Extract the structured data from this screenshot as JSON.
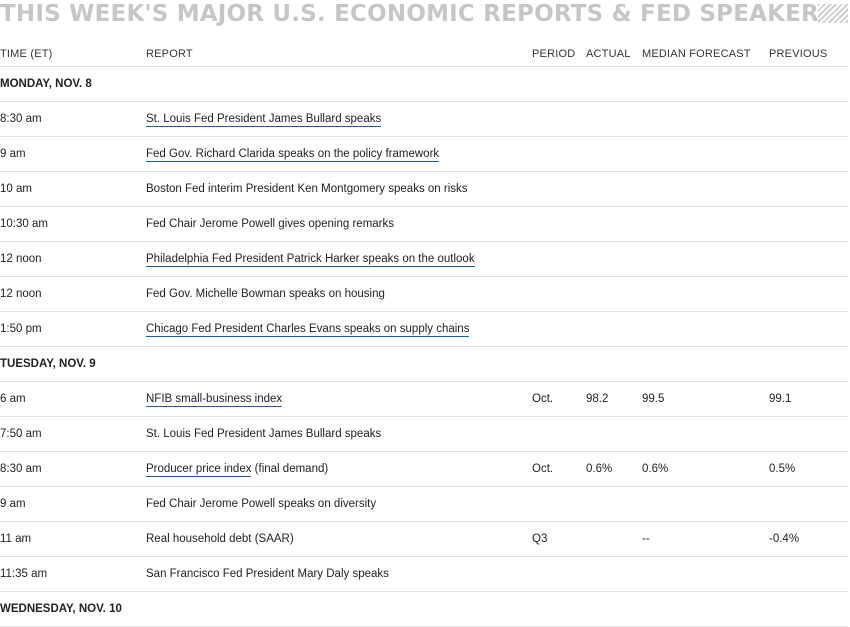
{
  "title": "THIS WEEK'S MAJOR U.S. ECONOMIC REPORTS & FED SPEAKERS",
  "headers": {
    "time": "TIME (ET)",
    "report": "REPORT",
    "period": "PERIOD",
    "actual": "ACTUAL",
    "median": "MEDIAN FORECAST",
    "previous": "PREVIOUS"
  },
  "rows": [
    {
      "type": "day",
      "label": "MONDAY, NOV. 8"
    },
    {
      "type": "event",
      "time": "8:30 am",
      "report": "St. Louis Fed President James Bullard speaks",
      "linked": true
    },
    {
      "type": "event",
      "time": "9 am",
      "report": "Fed Gov. Richard Clarida speaks on the policy framework",
      "linked": true
    },
    {
      "type": "event",
      "time": "10 am",
      "report": "Boston Fed interim President Ken Montgomery speaks on risks",
      "linked": false
    },
    {
      "type": "event",
      "time": "10:30 am",
      "report": "Fed Chair Jerome Powell gives opening remarks",
      "linked": false
    },
    {
      "type": "event",
      "time": "12 noon",
      "report": "Philadelphia Fed President Patrick Harker speaks on the outlook",
      "linked": true
    },
    {
      "type": "event",
      "time": "12 noon",
      "report": "Fed Gov. Michelle Bowman speaks on housing",
      "linked": false
    },
    {
      "type": "event",
      "time": "1:50 pm",
      "report": "Chicago Fed President Charles Evans speaks on supply chains",
      "linked": true
    },
    {
      "type": "day",
      "label": "TUESDAY, NOV. 9"
    },
    {
      "type": "event",
      "time": "6 am",
      "report": "NFIB small-business index",
      "linked": true,
      "period": "Oct.",
      "actual": "98.2",
      "median": "99.5",
      "previous": "99.1"
    },
    {
      "type": "event",
      "time": "7:50 am",
      "report": "St. Louis Fed President James Bullard speaks",
      "linked": false
    },
    {
      "type": "event",
      "time": "8:30 am",
      "report": "Producer price index",
      "report_suffix": " (final demand)",
      "linked": true,
      "period": "Oct.",
      "actual": "0.6%",
      "median": "0.6%",
      "previous": "0.5%"
    },
    {
      "type": "event",
      "time": "9 am",
      "report": "Fed Chair Jerome Powell speaks on diversity",
      "linked": false
    },
    {
      "type": "event",
      "time": "11 am",
      "report": "Real household debt (SAAR)",
      "linked": false,
      "period": "Q3",
      "median": "--",
      "previous": "-0.4%"
    },
    {
      "type": "event",
      "time": "11:35 am",
      "report": "San Francisco Fed President Mary Daly speaks",
      "linked": false
    },
    {
      "type": "day",
      "label": "WEDNESDAY, NOV. 10"
    }
  ]
}
